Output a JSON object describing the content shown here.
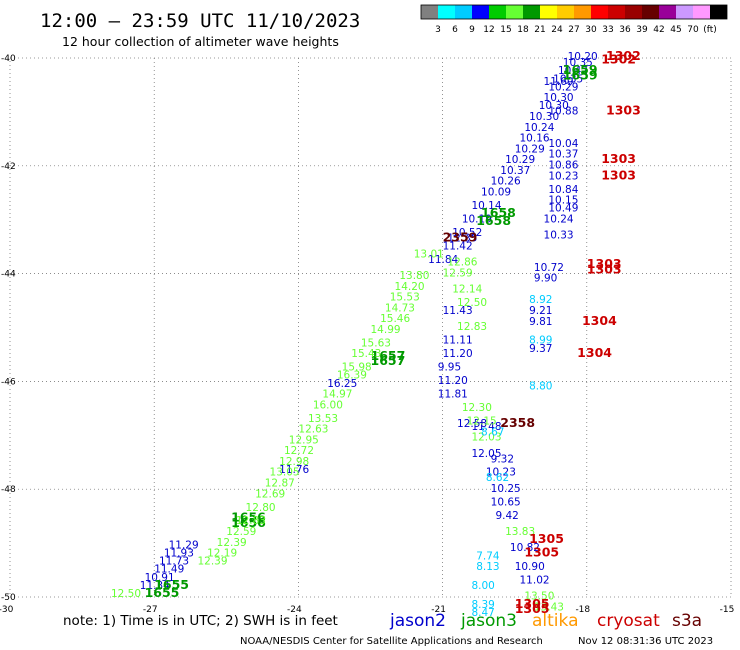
{
  "header": {
    "title": "12:00 — 23:59 UTC 11/10/2023",
    "subtitle": "12 hour collection of altimeter wave heights"
  },
  "colorbar": {
    "colors": [
      "#808080",
      "#00ffff",
      "#00ccff",
      "#0000ff",
      "#00cc00",
      "#66ff33",
      "#009900",
      "#ffff00",
      "#ffcc00",
      "#ff9900",
      "#ff0000",
      "#cc0000",
      "#990000",
      "#660000",
      "#990099",
      "#cc99ff",
      "#ff99ff",
      "#000000"
    ],
    "labels": [
      "3",
      "6",
      "9",
      "12",
      "15",
      "18",
      "21",
      "24",
      "27",
      "30",
      "33",
      "36",
      "39",
      "42",
      "45",
      "70",
      "(ft)"
    ]
  },
  "footer": {
    "note": "note: 1) Time is in UTC; 2) SWH is in feet",
    "credit": "NOAA/NESDIS Center for Satellite Applications and Research",
    "timestamp": "Nov 12 08:31:36 UTC 2023"
  },
  "legend": [
    {
      "name": "jason2",
      "color": "#0000cc"
    },
    {
      "name": "jason3",
      "color": "#009900"
    },
    {
      "name": "altika",
      "color": "#ff9900"
    },
    {
      "name": "cryosat",
      "color": "#cc0000"
    },
    {
      "name": "s3a",
      "color": "#660000"
    }
  ],
  "chart_data": {
    "type": "scatter",
    "xlim": [
      -30,
      -15
    ],
    "ylim": [
      -50,
      -40
    ],
    "x_ticks": [
      -30,
      -27,
      -24,
      -21,
      -18,
      -15
    ],
    "y_ticks": [
      -40,
      -42,
      -44,
      -46,
      -48,
      -50
    ],
    "grid": true,
    "points": [
      {
        "x": -18.4,
        "y": -40.04,
        "label": "10.20",
        "color": "#0000cc"
      },
      {
        "x": -18.5,
        "y": -40.15,
        "label": "10.35",
        "color": "#0000cc"
      },
      {
        "x": -18.6,
        "y": -40.3,
        "label": "10.42",
        "color": "#0000cc"
      },
      {
        "x": -18.7,
        "y": -40.45,
        "label": "10.35",
        "color": "#0000cc"
      },
      {
        "x": -18.8,
        "y": -40.6,
        "label": "10.29",
        "color": "#0000cc"
      },
      {
        "x": -18.9,
        "y": -40.8,
        "label": "10.30",
        "color": "#0000cc"
      },
      {
        "x": -19.0,
        "y": -40.95,
        "label": "10.30",
        "color": "#0000cc"
      },
      {
        "x": -19.2,
        "y": -41.15,
        "label": "10.30",
        "color": "#0000cc"
      },
      {
        "x": -19.3,
        "y": -41.35,
        "label": "10.24",
        "color": "#0000cc"
      },
      {
        "x": -19.4,
        "y": -41.55,
        "label": "10.16",
        "color": "#0000cc"
      },
      {
        "x": -19.5,
        "y": -41.75,
        "label": "10.29",
        "color": "#0000cc"
      },
      {
        "x": -19.7,
        "y": -41.95,
        "label": "10.29",
        "color": "#0000cc"
      },
      {
        "x": -19.8,
        "y": -42.15,
        "label": "10.37",
        "color": "#0000cc"
      },
      {
        "x": -20.0,
        "y": -42.35,
        "label": "10.26",
        "color": "#0000cc"
      },
      {
        "x": -20.2,
        "y": -42.55,
        "label": "10.09",
        "color": "#0000cc"
      },
      {
        "x": -20.4,
        "y": -42.8,
        "label": "10.14",
        "color": "#0000cc"
      },
      {
        "x": -20.6,
        "y": -43.05,
        "label": "10.19",
        "color": "#0000cc"
      },
      {
        "x": -20.8,
        "y": -43.3,
        "label": "10.52",
        "color": "#0000cc"
      },
      {
        "x": -21.0,
        "y": -43.55,
        "label": "11.42",
        "color": "#0000cc"
      },
      {
        "x": -21.3,
        "y": -43.8,
        "label": "11.84",
        "color": "#0000cc"
      },
      {
        "x": -18.9,
        "y": -40.5,
        "label": "11.69",
        "color": "#0000cc"
      },
      {
        "x": -18.8,
        "y": -41.05,
        "label": "10.88",
        "color": "#0000cc"
      },
      {
        "x": -18.8,
        "y": -41.65,
        "label": "10.04",
        "color": "#0000cc"
      },
      {
        "x": -18.8,
        "y": -41.85,
        "label": "10.37",
        "color": "#0000cc"
      },
      {
        "x": -18.8,
        "y": -42.05,
        "label": "10.86",
        "color": "#0000cc"
      },
      {
        "x": -18.8,
        "y": -42.25,
        "label": "10.23",
        "color": "#0000cc"
      },
      {
        "x": -18.8,
        "y": -42.5,
        "label": "10.84",
        "color": "#0000cc"
      },
      {
        "x": -18.8,
        "y": -42.7,
        "label": "10.15",
        "color": "#0000cc"
      },
      {
        "x": -18.8,
        "y": -42.85,
        "label": "10.49",
        "color": "#0000cc"
      },
      {
        "x": -18.9,
        "y": -43.05,
        "label": "10.24",
        "color": "#0000cc"
      },
      {
        "x": -18.9,
        "y": -43.35,
        "label": "10.33",
        "color": "#0000cc"
      },
      {
        "x": -19.1,
        "y": -43.95,
        "label": "10.72",
        "color": "#0000cc"
      },
      {
        "x": -19.1,
        "y": -44.15,
        "label": "9.90",
        "color": "#0000cc"
      },
      {
        "x": -19.2,
        "y": -44.75,
        "label": "9.21",
        "color": "#0000cc"
      },
      {
        "x": -19.2,
        "y": -44.95,
        "label": "9.81",
        "color": "#0000cc"
      },
      {
        "x": -19.2,
        "y": -45.45,
        "label": "9.37",
        "color": "#0000cc"
      },
      {
        "x": -21.0,
        "y": -44.75,
        "label": "11.43",
        "color": "#0000cc"
      },
      {
        "x": -21.0,
        "y": -45.3,
        "label": "11.11",
        "color": "#0000cc"
      },
      {
        "x": -21.0,
        "y": -45.55,
        "label": "11.20",
        "color": "#0000cc"
      },
      {
        "x": -21.1,
        "y": -45.8,
        "label": "9.95",
        "color": "#0000cc"
      },
      {
        "x": -21.1,
        "y": -46.05,
        "label": "11.20",
        "color": "#0000cc"
      },
      {
        "x": -21.1,
        "y": -46.3,
        "label": "11.81",
        "color": "#0000cc"
      },
      {
        "x": -20.4,
        "y": -46.9,
        "label": "11.48",
        "color": "#0000cc"
      },
      {
        "x": -20.0,
        "y": -47.5,
        "label": "9.32",
        "color": "#0000cc"
      },
      {
        "x": -20.1,
        "y": -47.75,
        "label": "10.23",
        "color": "#0000cc"
      },
      {
        "x": -20.0,
        "y": -48.05,
        "label": "10.25",
        "color": "#0000cc"
      },
      {
        "x": -20.0,
        "y": -48.3,
        "label": "10.65",
        "color": "#0000cc"
      },
      {
        "x": -19.9,
        "y": -48.55,
        "label": "9.42",
        "color": "#0000cc"
      },
      {
        "x": -19.6,
        "y": -49.15,
        "label": "10.82",
        "color": "#0000cc"
      },
      {
        "x": -19.5,
        "y": -49.5,
        "label": "10.90",
        "color": "#0000cc"
      },
      {
        "x": -19.4,
        "y": -49.75,
        "label": "11.02",
        "color": "#0000cc"
      },
      {
        "x": -26.7,
        "y": -49.1,
        "label": "11.29",
        "color": "#0000cc"
      },
      {
        "x": -26.8,
        "y": -49.25,
        "label": "11.93",
        "color": "#0000cc"
      },
      {
        "x": -26.9,
        "y": -49.4,
        "label": "11.73",
        "color": "#0000cc"
      },
      {
        "x": -27.0,
        "y": -49.55,
        "label": "11.49",
        "color": "#0000cc"
      },
      {
        "x": -27.2,
        "y": -49.7,
        "label": "10.91",
        "color": "#0000cc"
      },
      {
        "x": -27.3,
        "y": -49.85,
        "label": "11.34",
        "color": "#0000cc"
      },
      {
        "x": -24.4,
        "y": -47.7,
        "label": "11.76",
        "color": "#0000cc"
      },
      {
        "x": -23.4,
        "y": -46.1,
        "label": "16.25",
        "color": "#0000cc"
      },
      {
        "x": -20.7,
        "y": -46.85,
        "label": "12.58",
        "color": "#0000cc"
      },
      {
        "x": -20.4,
        "y": -47.4,
        "label": "12.05",
        "color": "#0000cc"
      },
      {
        "x": -20.9,
        "y": -43.4,
        "label": "12.35",
        "color": "#0000cc"
      },
      {
        "x": -18.5,
        "y": -40.3,
        "label": "1659",
        "color": "#009900"
      },
      {
        "x": -18.5,
        "y": -40.4,
        "label": "1659",
        "color": "#009900"
      },
      {
        "x": -20.2,
        "y": -42.95,
        "label": "1658",
        "color": "#009900"
      },
      {
        "x": -20.3,
        "y": -43.1,
        "label": "1658",
        "color": "#009900"
      },
      {
        "x": -22.5,
        "y": -45.6,
        "label": "1657",
        "color": "#009900"
      },
      {
        "x": -22.5,
        "y": -45.7,
        "label": "1657",
        "color": "#009900"
      },
      {
        "x": -25.4,
        "y": -48.6,
        "label": "1656",
        "color": "#009900"
      },
      {
        "x": -25.4,
        "y": -48.7,
        "label": "1656",
        "color": "#009900"
      },
      {
        "x": -27.0,
        "y": -49.85,
        "label": "1655",
        "color": "#009900"
      },
      {
        "x": -27.2,
        "y": -50.0,
        "label": "1655",
        "color": "#009900"
      },
      {
        "x": -20.9,
        "y": -43.85,
        "label": "12.86",
        "color": "#66ff33"
      },
      {
        "x": -21.0,
        "y": -44.05,
        "label": "12.59",
        "color": "#66ff33"
      },
      {
        "x": -20.8,
        "y": -44.35,
        "label": "12.14",
        "color": "#66ff33"
      },
      {
        "x": -20.7,
        "y": -44.6,
        "label": "12.50",
        "color": "#66ff33"
      },
      {
        "x": -20.7,
        "y": -45.05,
        "label": "12.83",
        "color": "#66ff33"
      },
      {
        "x": -20.6,
        "y": -46.55,
        "label": "12.30",
        "color": "#66ff33"
      },
      {
        "x": -20.5,
        "y": -46.8,
        "label": "12.15",
        "color": "#66ff33"
      },
      {
        "x": -20.4,
        "y": -47.1,
        "label": "12.03",
        "color": "#66ff33"
      },
      {
        "x": -19.7,
        "y": -48.85,
        "label": "13.83",
        "color": "#66ff33"
      },
      {
        "x": -19.3,
        "y": -50.05,
        "label": "13.50",
        "color": "#66ff33"
      },
      {
        "x": -19.1,
        "y": -50.25,
        "label": "13.43",
        "color": "#66ff33"
      },
      {
        "x": -21.6,
        "y": -43.7,
        "label": "13.01",
        "color": "#66ff33"
      },
      {
        "x": -21.9,
        "y": -44.1,
        "label": "13.80",
        "color": "#66ff33"
      },
      {
        "x": -22.0,
        "y": -44.3,
        "label": "14.20",
        "color": "#66ff33"
      },
      {
        "x": -22.1,
        "y": -44.5,
        "label": "15.53",
        "color": "#66ff33"
      },
      {
        "x": -22.2,
        "y": -44.7,
        "label": "14.73",
        "color": "#66ff33"
      },
      {
        "x": -22.3,
        "y": -44.9,
        "label": "15.46",
        "color": "#66ff33"
      },
      {
        "x": -22.5,
        "y": -45.1,
        "label": "14.99",
        "color": "#66ff33"
      },
      {
        "x": -22.7,
        "y": -45.35,
        "label": "15.63",
        "color": "#66ff33"
      },
      {
        "x": -22.9,
        "y": -45.55,
        "label": "15.43",
        "color": "#66ff33"
      },
      {
        "x": -23.1,
        "y": -45.8,
        "label": "15.98",
        "color": "#66ff33"
      },
      {
        "x": -23.2,
        "y": -45.95,
        "label": "16.39",
        "color": "#66ff33"
      },
      {
        "x": -23.5,
        "y": -46.3,
        "label": "14.97",
        "color": "#66ff33"
      },
      {
        "x": -23.7,
        "y": -46.5,
        "label": "16.00",
        "color": "#66ff33"
      },
      {
        "x": -23.8,
        "y": -46.75,
        "label": "13.53",
        "color": "#66ff33"
      },
      {
        "x": -24.0,
        "y": -46.95,
        "label": "12.63",
        "color": "#66ff33"
      },
      {
        "x": -24.2,
        "y": -47.15,
        "label": "12.95",
        "color": "#66ff33"
      },
      {
        "x": -24.3,
        "y": -47.35,
        "label": "12.72",
        "color": "#66ff33"
      },
      {
        "x": -24.4,
        "y": -47.55,
        "label": "12.98",
        "color": "#66ff33"
      },
      {
        "x": -24.6,
        "y": -47.75,
        "label": "13.05",
        "color": "#66ff33"
      },
      {
        "x": -24.7,
        "y": -47.95,
        "label": "12.87",
        "color": "#66ff33"
      },
      {
        "x": -24.9,
        "y": -48.15,
        "label": "12.69",
        "color": "#66ff33"
      },
      {
        "x": -25.1,
        "y": -48.4,
        "label": "12.80",
        "color": "#66ff33"
      },
      {
        "x": -25.3,
        "y": -48.65,
        "label": "12.83",
        "color": "#66ff33"
      },
      {
        "x": -25.5,
        "y": -48.85,
        "label": "12.59",
        "color": "#66ff33"
      },
      {
        "x": -25.7,
        "y": -49.05,
        "label": "12.39",
        "color": "#66ff33"
      },
      {
        "x": -25.9,
        "y": -49.25,
        "label": "12.19",
        "color": "#66ff33"
      },
      {
        "x": -26.1,
        "y": -49.4,
        "label": "12.39",
        "color": "#66ff33"
      },
      {
        "x": -27.9,
        "y": -50.0,
        "label": "12.50",
        "color": "#66ff33"
      },
      {
        "x": -19.2,
        "y": -44.55,
        "label": "8.92",
        "color": "#00ccff"
      },
      {
        "x": -19.2,
        "y": -45.3,
        "label": "8.99",
        "color": "#00ccff"
      },
      {
        "x": -19.2,
        "y": -46.15,
        "label": "8.80",
        "color": "#00ccff"
      },
      {
        "x": -20.2,
        "y": -47.0,
        "label": "8.67",
        "color": "#00ccff"
      },
      {
        "x": -20.1,
        "y": -47.85,
        "label": "8.62",
        "color": "#00ccff"
      },
      {
        "x": -20.3,
        "y": -49.3,
        "label": "7.74",
        "color": "#00ccff"
      },
      {
        "x": -20.3,
        "y": -49.5,
        "label": "8.13",
        "color": "#00ccff"
      },
      {
        "x": -20.4,
        "y": -49.85,
        "label": "8.00",
        "color": "#00ccff"
      },
      {
        "x": -20.4,
        "y": -50.2,
        "label": "8.39",
        "color": "#00ccff"
      },
      {
        "x": -20.4,
        "y": -50.35,
        "label": "8.47",
        "color": "#00ccff"
      },
      {
        "x": -17.6,
        "y": -40.04,
        "label": "1302",
        "color": "#cc0000"
      },
      {
        "x": -17.7,
        "y": -40.1,
        "label": "1302",
        "color": "#cc0000"
      },
      {
        "x": -17.6,
        "y": -41.05,
        "label": "1303",
        "color": "#cc0000"
      },
      {
        "x": -17.7,
        "y": -41.95,
        "label": "1303",
        "color": "#cc0000"
      },
      {
        "x": -17.7,
        "y": -42.25,
        "label": "1303",
        "color": "#cc0000"
      },
      {
        "x": -18.0,
        "y": -43.9,
        "label": "1303",
        "color": "#cc0000"
      },
      {
        "x": -18.0,
        "y": -44.0,
        "label": "1303",
        "color": "#cc0000"
      },
      {
        "x": -18.1,
        "y": -44.95,
        "label": "1304",
        "color": "#cc0000"
      },
      {
        "x": -18.2,
        "y": -45.55,
        "label": "1304",
        "color": "#cc0000"
      },
      {
        "x": -19.2,
        "y": -49.0,
        "label": "1305",
        "color": "#cc0000"
      },
      {
        "x": -19.3,
        "y": -49.25,
        "label": "1305",
        "color": "#cc0000"
      },
      {
        "x": -19.5,
        "y": -50.2,
        "label": "1305",
        "color": "#cc0000"
      },
      {
        "x": -19.5,
        "y": -50.3,
        "label": "1305",
        "color": "#cc0000"
      },
      {
        "x": -21.0,
        "y": -43.4,
        "label": "2359",
        "color": "#660000"
      },
      {
        "x": -19.8,
        "y": -46.85,
        "label": "2358",
        "color": "#660000"
      }
    ]
  }
}
